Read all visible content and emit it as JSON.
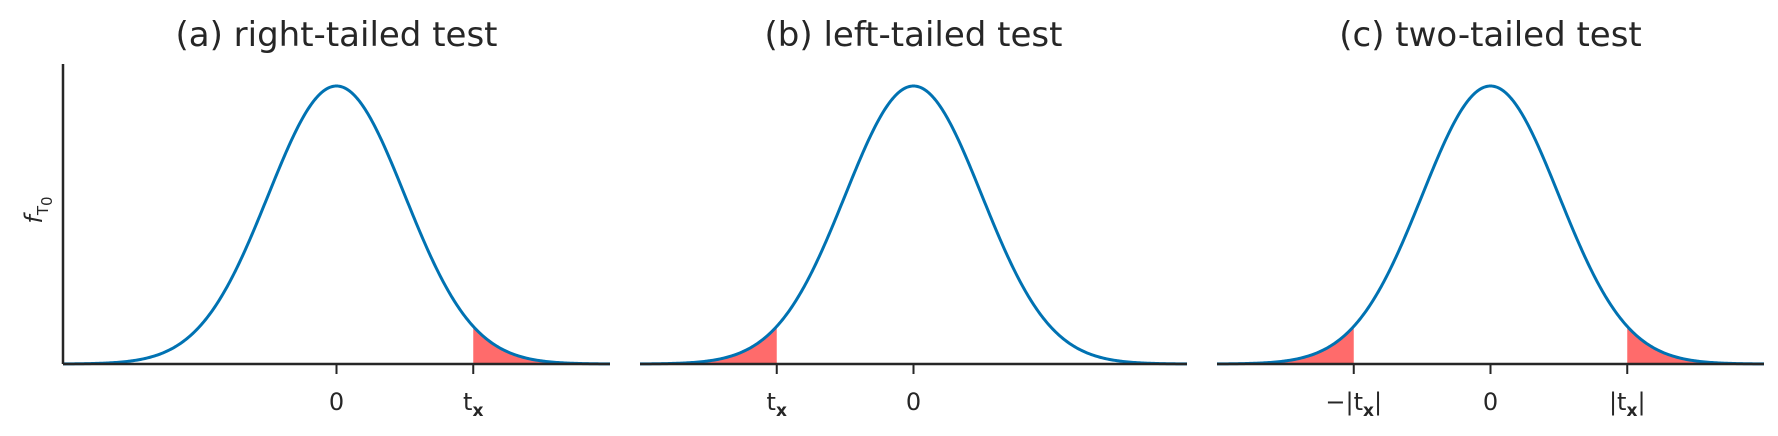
{
  "chart_data": [
    {
      "type": "line",
      "title": "(a) right-tailed test",
      "ylabel": "f",
      "ylabel_subscript": "T",
      "ylabel_subsubscript": "0",
      "xlim": [
        -4,
        4
      ],
      "ylim": [
        0,
        0.4
      ],
      "peak_at": 0,
      "xticks": [
        {
          "x": 0,
          "label": "0",
          "sub": ""
        },
        {
          "x": 2,
          "label": "t",
          "sub": "x"
        }
      ],
      "shaded": [
        [
          2,
          4
        ]
      ],
      "colors": {
        "curve": "#0072b2",
        "shade": "#ff6b6b"
      }
    },
    {
      "type": "line",
      "title": "(b) left-tailed test",
      "xlim": [
        -4,
        4
      ],
      "ylim": [
        0,
        0.4
      ],
      "peak_at": 0,
      "xticks": [
        {
          "x": -2,
          "label": "t",
          "sub": "x"
        },
        {
          "x": 0,
          "label": "0",
          "sub": ""
        }
      ],
      "shaded": [
        [
          -4,
          -2
        ]
      ],
      "colors": {
        "curve": "#0072b2",
        "shade": "#ff6b6b"
      }
    },
    {
      "type": "line",
      "title": "(c) two-tailed test",
      "xlim": [
        -4,
        4
      ],
      "ylim": [
        0,
        0.4
      ],
      "peak_at": 0,
      "xticks": [
        {
          "x": -2,
          "label": "−|t",
          "sub": "x",
          "suffix": "|"
        },
        {
          "x": 0,
          "label": "0",
          "sub": ""
        },
        {
          "x": 2,
          "label": "|t",
          "sub": "x",
          "suffix": "|"
        }
      ],
      "shaded": [
        [
          -4,
          -2
        ],
        [
          2,
          4
        ]
      ],
      "colors": {
        "curve": "#0072b2",
        "shade": "#ff6b6b"
      }
    }
  ]
}
